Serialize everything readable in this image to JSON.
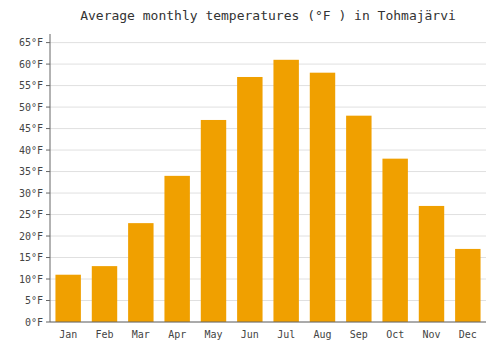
{
  "chart_data": {
    "type": "bar",
    "title": "Average monthly temperatures (°F ) in Tohmajärvi",
    "categories": [
      "Jan",
      "Feb",
      "Mar",
      "Apr",
      "May",
      "Jun",
      "Jul",
      "Aug",
      "Sep",
      "Oct",
      "Nov",
      "Dec"
    ],
    "values": [
      11,
      13,
      23,
      34,
      47,
      57,
      61,
      58,
      48,
      38,
      27,
      17
    ],
    "color": "#F0A000",
    "ylim": [
      0,
      67
    ],
    "yticks": [
      {
        "value": 0,
        "label": "0°F"
      },
      {
        "value": 5,
        "label": "5°F"
      },
      {
        "value": 10,
        "label": "10°F"
      },
      {
        "value": 15,
        "label": "15°F"
      },
      {
        "value": 20,
        "label": "20°F"
      },
      {
        "value": 25,
        "label": "25°F"
      },
      {
        "value": 30,
        "label": "30°F"
      },
      {
        "value": 35,
        "label": "35°F"
      },
      {
        "value": 40,
        "label": "40°F"
      },
      {
        "value": 45,
        "label": "45°F"
      },
      {
        "value": 50,
        "label": "50°F"
      },
      {
        "value": 55,
        "label": "55°F"
      },
      {
        "value": 60,
        "label": "60°F"
      },
      {
        "value": 65,
        "label": "65°F"
      }
    ],
    "grid": true
  }
}
